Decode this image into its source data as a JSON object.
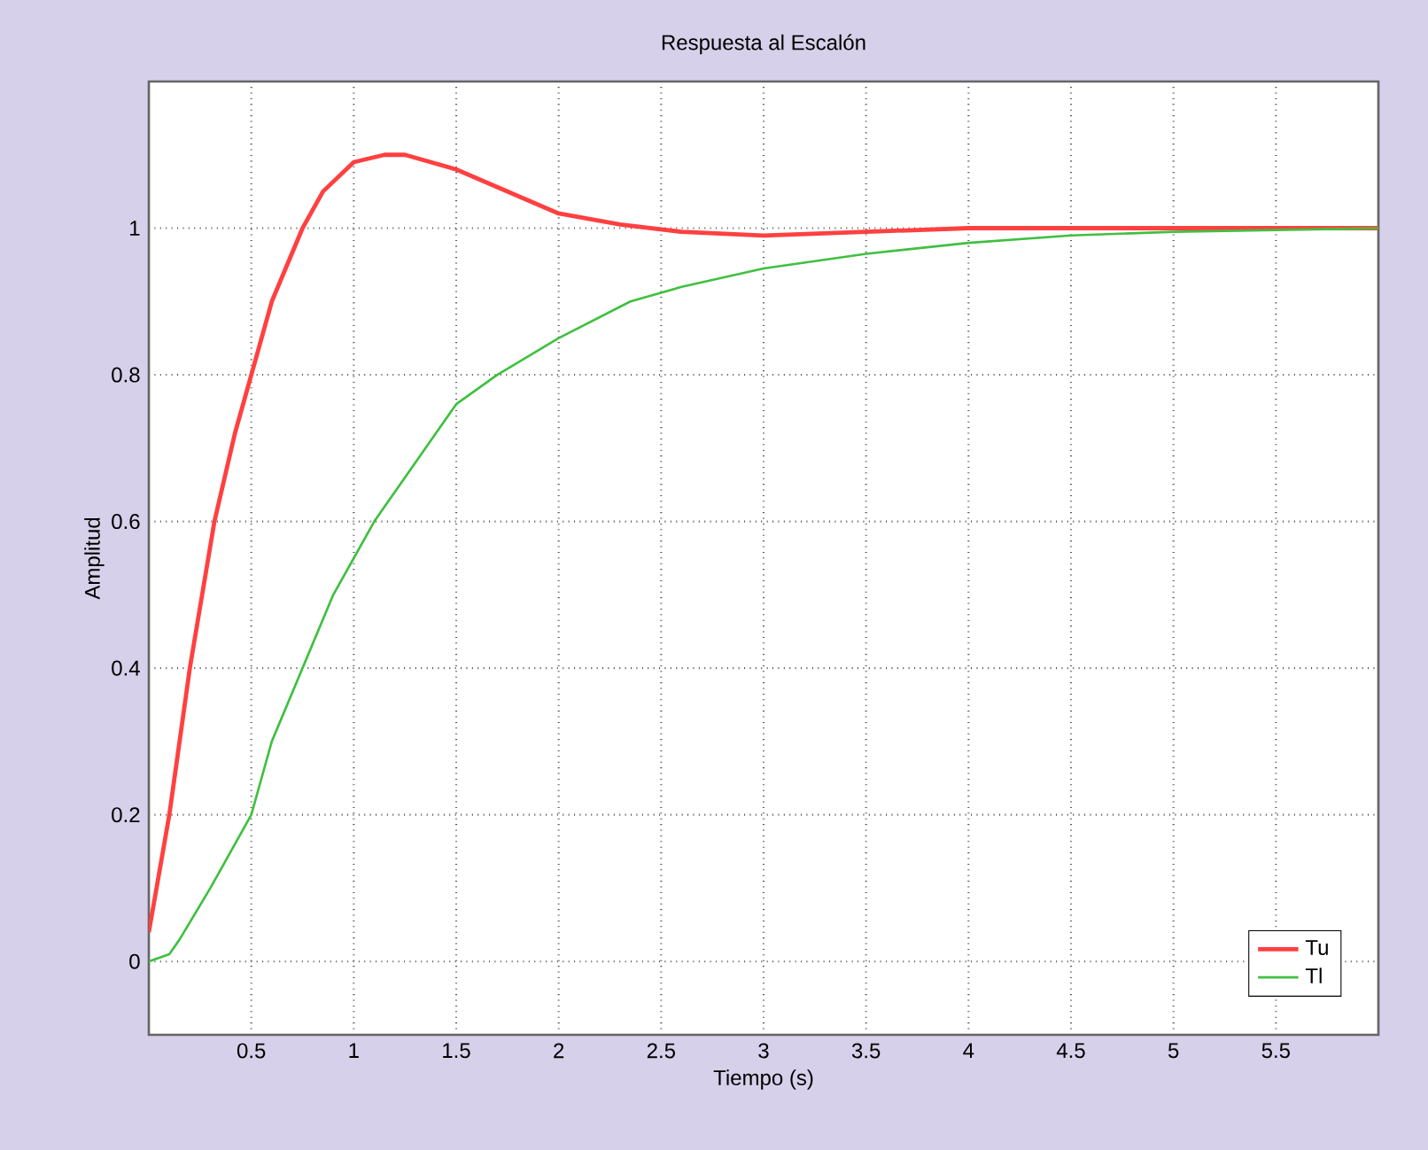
{
  "chart_data": {
    "type": "line",
    "title": "Respuesta al Escalón",
    "xlabel": "Tiempo (s)",
    "ylabel": "Amplitud",
    "xlim": [
      0,
      6
    ],
    "ylim": [
      -0.1,
      1.2
    ],
    "xticks": [
      0.5,
      1,
      1.5,
      2,
      2.5,
      3,
      3.5,
      4,
      4.5,
      5,
      5.5
    ],
    "yticks": [
      0,
      0.2,
      0.4,
      0.6,
      0.8,
      1
    ],
    "grid": true,
    "legend": "bottom right",
    "marker": "none",
    "line_style": "solid",
    "series": [
      {
        "name": "Tu",
        "color": "#ff4040",
        "x": [
          0,
          0.1,
          0.2,
          0.32,
          0.42,
          0.5,
          0.6,
          0.75,
          0.85,
          1.0,
          1.15,
          1.25,
          1.5,
          1.75,
          2.0,
          2.3,
          2.6,
          3.0,
          3.5,
          4.0,
          4.5,
          5.0,
          6.0
        ],
        "values": [
          0.04,
          0.2,
          0.4,
          0.6,
          0.72,
          0.8,
          0.9,
          1.0,
          1.05,
          1.09,
          1.1,
          1.1,
          1.08,
          1.05,
          1.02,
          1.005,
          0.995,
          0.99,
          0.995,
          1.0,
          1.0,
          1.0,
          1.0
        ]
      },
      {
        "name": "Tl",
        "color": "#40c040",
        "x": [
          0,
          0.1,
          0.15,
          0.3,
          0.5,
          0.6,
          0.75,
          0.9,
          1.0,
          1.1,
          1.35,
          1.5,
          1.7,
          2.0,
          2.35,
          2.6,
          3.0,
          3.5,
          4.0,
          4.5,
          5.0,
          6.0
        ],
        "values": [
          0,
          0.01,
          0.03,
          0.1,
          0.2,
          0.3,
          0.4,
          0.5,
          0.55,
          0.6,
          0.7,
          0.76,
          0.8,
          0.85,
          0.9,
          0.92,
          0.945,
          0.965,
          0.98,
          0.99,
          0.995,
          1.0
        ]
      }
    ]
  }
}
